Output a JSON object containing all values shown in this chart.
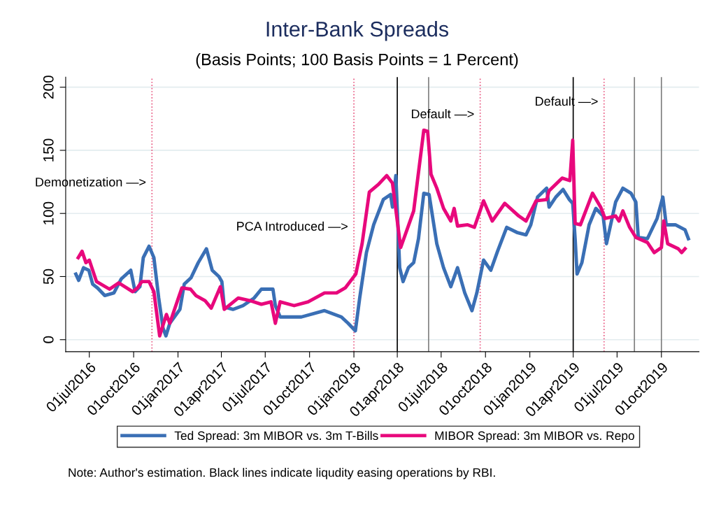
{
  "chart_data": {
    "type": "line",
    "title": "Inter-Bank Spreads",
    "subtitle": "(Basis Points; 100 Basis Points = 1 Percent)",
    "series": [
      {
        "name": "Ted Spread: 3m MIBOR vs. 3m T-Bills",
        "color": "#3a6fb5",
        "x": [
          "2016-06-03",
          "2016-06-09",
          "2016-06-19",
          "2016-06-30",
          "2016-07-08",
          "2016-07-18",
          "2016-08-02",
          "2016-08-21",
          "2016-09-05",
          "2016-09-25",
          "2016-10-04",
          "2016-10-14",
          "2016-10-21",
          "2016-11-02",
          "2016-11-12",
          "2016-11-22",
          "2016-12-01",
          "2016-12-07",
          "2016-12-15",
          "2017-01-05",
          "2017-01-14",
          "2017-01-28",
          "2017-02-12",
          "2017-03-01",
          "2017-03-13",
          "2017-03-27",
          "2017-04-02",
          "2017-04-07",
          "2017-04-25",
          "2017-05-16",
          "2017-06-08",
          "2017-06-23",
          "2017-07-17",
          "2017-07-22",
          "2017-08-01",
          "2017-09-14",
          "2017-11-01",
          "2017-12-06",
          "2017-12-20",
          "2018-01-04",
          "2018-01-13",
          "2018-01-27",
          "2018-02-11",
          "2018-03-03",
          "2018-03-18",
          "2018-03-22",
          "2018-03-29",
          "2018-04-06",
          "2018-04-13",
          "2018-04-24",
          "2018-05-05",
          "2018-05-15",
          "2018-05-26",
          "2018-06-06",
          "2018-06-22",
          "2018-07-06",
          "2018-07-21",
          "2018-08-04",
          "2018-08-19",
          "2018-09-03",
          "2018-09-13",
          "2018-09-27",
          "2018-10-12",
          "2018-10-26",
          "2018-11-14",
          "2018-12-05",
          "2018-12-24",
          "2019-01-03",
          "2019-01-17",
          "2019-02-05",
          "2019-02-10",
          "2019-02-24",
          "2019-03-11",
          "2019-03-24",
          "2019-03-31",
          "2019-04-05",
          "2019-04-09",
          "2019-04-19",
          "2019-05-04",
          "2019-05-18",
          "2019-06-02",
          "2019-06-09",
          "2019-06-28",
          "2019-07-13",
          "2019-07-30",
          "2019-08-09",
          "2019-08-14",
          "2019-09-02",
          "2019-09-22",
          "2019-10-04",
          "2019-10-11",
          "2019-10-30",
          "2019-11-19",
          "2019-11-26"
        ],
        "values": [
          52,
          47,
          57,
          55,
          44,
          41,
          35,
          37,
          48,
          55,
          38,
          42,
          65,
          74,
          65,
          33,
          9,
          3,
          13,
          24,
          44,
          49,
          61,
          72,
          55,
          50,
          46,
          26,
          24,
          27,
          33,
          40,
          40,
          27,
          18,
          18,
          23,
          18,
          13,
          7,
          33,
          69,
          91,
          111,
          115,
          105,
          130,
          57,
          46,
          57,
          61,
          80,
          116,
          115,
          76,
          57,
          42,
          57,
          37,
          23,
          37,
          63,
          55,
          70,
          89,
          85,
          83,
          91,
          113,
          120,
          105,
          113,
          119,
          111,
          108,
          80,
          52,
          61,
          91,
          104,
          98,
          76,
          109,
          120,
          116,
          109,
          81,
          80,
          96,
          113,
          91,
          91,
          87,
          80
        ]
      },
      {
        "name": "MIBOR Spread: 3m MIBOR vs. Repo",
        "color": "#e8087c",
        "x": [
          "2016-06-08",
          "2016-06-16",
          "2016-06-24",
          "2016-07-01",
          "2016-07-16",
          "2016-08-12",
          "2016-08-31",
          "2016-09-29",
          "2016-10-09",
          "2016-10-18",
          "2016-11-02",
          "2016-11-12",
          "2016-11-24",
          "2016-12-08",
          "2016-12-15",
          "2017-01-09",
          "2017-01-27",
          "2017-02-07",
          "2017-02-26",
          "2017-03-11",
          "2017-03-30",
          "2017-04-07",
          "2017-05-06",
          "2017-05-30",
          "2017-06-23",
          "2017-07-13",
          "2017-07-22",
          "2017-08-01",
          "2017-08-30",
          "2017-09-28",
          "2017-11-01",
          "2017-11-26",
          "2017-12-14",
          "2018-01-05",
          "2018-01-18",
          "2018-02-02",
          "2018-02-21",
          "2018-03-10",
          "2018-03-22",
          "2018-04-08",
          "2018-05-05",
          "2018-05-26",
          "2018-06-03",
          "2018-06-10",
          "2018-06-22",
          "2018-07-06",
          "2018-07-21",
          "2018-07-28",
          "2018-08-04",
          "2018-08-25",
          "2018-09-08",
          "2018-09-27",
          "2018-10-15",
          "2018-11-10",
          "2018-12-09",
          "2018-12-24",
          "2019-01-14",
          "2019-02-05",
          "2019-02-10",
          "2019-03-09",
          "2019-03-25",
          "2019-03-31",
          "2019-04-05",
          "2019-04-16",
          "2019-05-11",
          "2019-05-28",
          "2019-06-06",
          "2019-06-28",
          "2019-07-05",
          "2019-07-13",
          "2019-07-27",
          "2019-08-09",
          "2019-09-02",
          "2019-09-16",
          "2019-10-01",
          "2019-10-06",
          "2019-10-14",
          "2019-11-05",
          "2019-11-12",
          "2019-11-19"
        ],
        "values": [
          65,
          70,
          61,
          63,
          46,
          40,
          45,
          38,
          41,
          46,
          46,
          38,
          3,
          20,
          13,
          41,
          40,
          35,
          31,
          25,
          42,
          24,
          33,
          31,
          28,
          30,
          13,
          30,
          27,
          30,
          37,
          37,
          41,
          52,
          76,
          117,
          123,
          130,
          124,
          73,
          102,
          166,
          165,
          131,
          120,
          104,
          94,
          104,
          90,
          91,
          89,
          110,
          94,
          108,
          98,
          94,
          110,
          111,
          118,
          128,
          126,
          158,
          92,
          91,
          116,
          105,
          96,
          98,
          94,
          102,
          89,
          81,
          77,
          69,
          73,
          94,
          76,
          72,
          69,
          72
        ]
      }
    ],
    "xlim": [
      "2016-05-13",
      "2019-12-18"
    ],
    "xticks": [
      {
        "value": "2016-07-01",
        "label": "01jul2016"
      },
      {
        "value": "2016-10-01",
        "label": "01oct2016"
      },
      {
        "value": "2017-01-01",
        "label": "01jan2017"
      },
      {
        "value": "2017-04-01",
        "label": "01apr2017"
      },
      {
        "value": "2017-07-01",
        "label": "01jul2017"
      },
      {
        "value": "2017-10-01",
        "label": "01oct2017"
      },
      {
        "value": "2018-01-01",
        "label": "01jan2018"
      },
      {
        "value": "2018-04-01",
        "label": "01apr2018"
      },
      {
        "value": "2018-07-01",
        "label": "01jul2018"
      },
      {
        "value": "2018-10-01",
        "label": "01oct2018"
      },
      {
        "value": "2019-01-01",
        "label": "01jan2019"
      },
      {
        "value": "2019-04-01",
        "label": "01apr2019"
      },
      {
        "value": "2019-07-01",
        "label": "01jul2019"
      },
      {
        "value": "2019-10-01",
        "label": "01oct2019"
      }
    ],
    "ylim": [
      -9.5,
      208
    ],
    "yticks": [
      0,
      50,
      100,
      150,
      200
    ],
    "ref_lines": [
      {
        "axis": "x",
        "value": "2016-11-08",
        "color": "#e8557f",
        "line_style": "dotted"
      },
      {
        "axis": "x",
        "value": "2018-01-01",
        "color": "#e8557f",
        "line_style": "dotted"
      },
      {
        "axis": "x",
        "value": "2018-09-20",
        "color": "#e8557f",
        "line_style": "dotted"
      },
      {
        "axis": "x",
        "value": "2019-06-04",
        "color": "#e8557f",
        "line_style": "dotted"
      },
      {
        "axis": "x",
        "value": "2018-04-01",
        "color": "#000000",
        "line_style": "solid"
      },
      {
        "axis": "x",
        "value": "2018-06-05",
        "color": "#7f7f7f",
        "line_style": "solid"
      },
      {
        "axis": "x",
        "value": "2019-04-01",
        "color": "#000000",
        "line_style": "solid"
      },
      {
        "axis": "x",
        "value": "2019-08-06",
        "color": "#7f7f7f",
        "line_style": "solid"
      },
      {
        "axis": "x",
        "value": "2019-10-01",
        "color": "#7f7f7f",
        "line_style": "solid"
      }
    ],
    "annotations": [
      {
        "text": "Demonetization —>",
        "x": "2016-11-08",
        "y": 124
      },
      {
        "text": "PCA Introduced —>",
        "x": "2018-01-01",
        "y": 89
      },
      {
        "text": "Default —>",
        "x": "2018-09-20",
        "y": 178
      },
      {
        "text": "Default —>",
        "x": "2019-06-04",
        "y": 188
      },
      "Note: Author's estimation. Black lines indicate liqudity easing operations by RBI."
    ],
    "grid": "y",
    "legend": "bottom",
    "line_style": "solid",
    "marker": "none"
  }
}
